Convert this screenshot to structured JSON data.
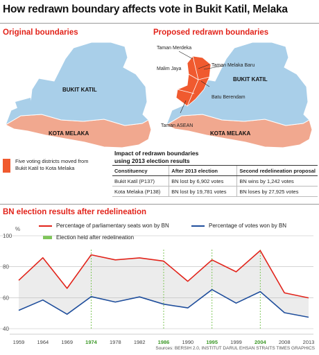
{
  "title": "How redrawn boundary affects vote in Bukit Katil, Melaka",
  "maps": {
    "original_title": "Original boundaries",
    "proposed_title": "Proposed redrawn boundaries",
    "bukit_katil": "BUKIT KATIL",
    "kota_melaka": "KOTA MELAKA",
    "taman_merdeka": "Taman Merdeka",
    "malim_jaya": "Malim Jaya",
    "taman_melaka_baru": "Taman Melaka Baru",
    "batu_berendam": "Batu Berendam",
    "taman_asean": "Taman ASEAN",
    "legend_text": "Five voting districts moved from Bukit Katil to Kota Melaka",
    "colors": {
      "bukit_katil": "#a9cfe9",
      "kota_melaka": "#f1a88f",
      "moved": "#f05a2f"
    }
  },
  "impact": {
    "title_line1": "Impact of redrawn boundaries",
    "title_line2": "using 2013 election results",
    "headers": [
      "Constituency",
      "After 2013 election",
      "Second redelineation proposal"
    ],
    "rows": [
      [
        "Bukit Katil (P137)",
        "BN lost by 6,902 votes",
        "BN wins by 1,242 votes"
      ],
      [
        "Kota Melaka (P138)",
        "BN lost by 19,781 votes",
        "BN loses by 27,925 votes"
      ]
    ]
  },
  "section_title": "BN election results after redelineation",
  "legend": {
    "seats": "Percentage of parliamentary seats won by BN",
    "votes": "Percentage of votes won by BN",
    "election": "Election held after redelineation"
  },
  "source": "Sources: BERSIH 2.0, INSTITUT DARUL EHSAN   STRAITS TIMES GRAPHICS",
  "chart_data": {
    "type": "line",
    "x": [
      "1959",
      "1964",
      "1969",
      "1974",
      "1978",
      "1982",
      "1986",
      "1990",
      "1995",
      "1999",
      "2004",
      "2008",
      "2013"
    ],
    "redelineation_years": [
      "1974",
      "1986",
      "1995",
      "2004"
    ],
    "series": [
      {
        "name": "Percentage of parliamentary seats won by BN",
        "color": "#e2231a",
        "values": [
          71.2,
          85.8,
          66.0,
          87.7,
          84.4,
          85.7,
          83.6,
          70.6,
          84.4,
          76.7,
          90.4,
          63.1,
          59.9
        ]
      },
      {
        "name": "Percentage of votes won by BN",
        "color": "#1f4e9c",
        "values": [
          51.8,
          58.5,
          49.3,
          60.7,
          57.2,
          60.5,
          55.8,
          53.4,
          65.2,
          56.5,
          63.9,
          50.3,
          47.4
        ]
      }
    ],
    "yunit": "%",
    "yticks": [
      40,
      60,
      80,
      100
    ],
    "ylim": [
      40,
      100
    ],
    "grid": true
  }
}
